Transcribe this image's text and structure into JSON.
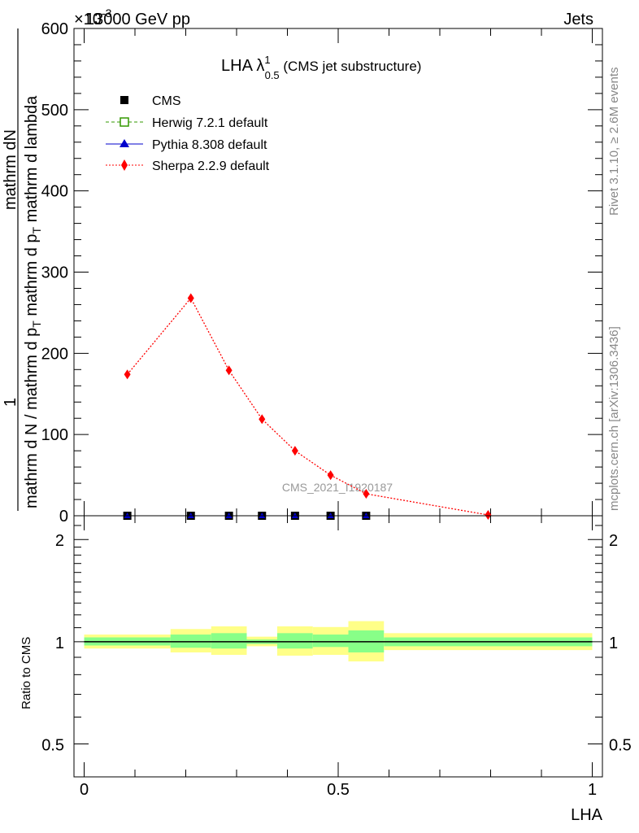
{
  "header": {
    "left": "13000 GeV pp",
    "right": "Jets",
    "exponent": "×10",
    "exponent_power": "-3"
  },
  "title": {
    "main": "LHA λ",
    "sup": "1",
    "sub": "0.5",
    "paren": " (CMS jet substructure)"
  },
  "side": {
    "rivet": "Rivet 3.1.10, ≥ 2.6M events",
    "mcplots": "mcplots.cern.ch [arXiv:1306.3436]"
  },
  "watermark": "CMS_2021_I1920187",
  "ylabel": {
    "numer_one": "1",
    "numer_deriv": "mathrm d",
    "numer_N": "N",
    "denom": "mathrm d N / mathrm d p",
    "denom_sub": "T",
    "denom2": " mathrm d p",
    "denom2_sub": "T",
    "denom3": " mathrm d lambda"
  },
  "ratio_ylabel": "Ratio to CMS",
  "xlabel": "LHA",
  "colors": {
    "herwig": "#339900",
    "pythia": "#0000cc",
    "sherpa": "#ff0000",
    "band_inner": "#88ff88",
    "band_outer": "#ffff88"
  },
  "chart_data": {
    "type": "line",
    "xlim": [
      -0.02,
      1.02
    ],
    "ylim": [
      0,
      600
    ],
    "y_exponent": -3,
    "x_ticks": [
      {
        "v": 0,
        "label": "0"
      },
      {
        "v": 0.5,
        "label": "0.5"
      },
      {
        "v": 1,
        "label": "1"
      }
    ],
    "y_ticks": [
      {
        "v": 0,
        "label": "0"
      },
      {
        "v": 100,
        "label": "100"
      },
      {
        "v": 200,
        "label": "200"
      },
      {
        "v": 300,
        "label": "300"
      },
      {
        "v": 400,
        "label": "400"
      },
      {
        "v": 500,
        "label": "500"
      },
      {
        "v": 600,
        "label": "600"
      }
    ],
    "legend": {
      "placement": "top-left",
      "entries": [
        {
          "name": "CMS",
          "style": "data"
        },
        {
          "name": "Herwig 7.2.1 default",
          "style": "herwig"
        },
        {
          "name": "Pythia 8.308 default",
          "style": "pythia"
        },
        {
          "name": "Sherpa 2.2.9 default",
          "style": "sherpa"
        }
      ]
    },
    "cms": {
      "x": [
        0.085,
        0.21,
        0.285,
        0.35,
        0.415,
        0.485,
        0.555
      ],
      "y": [
        0,
        0,
        0,
        0,
        0,
        0,
        0
      ]
    },
    "sherpa": {
      "x": [
        0.085,
        0.21,
        0.285,
        0.35,
        0.415,
        0.485,
        0.555,
        0.795
      ],
      "y": [
        174,
        268,
        179,
        119,
        80,
        50,
        27,
        1
      ]
    },
    "ratio": {
      "ylim": [
        0.4,
        2.35
      ],
      "y_scale": "log",
      "y_ticks": [
        {
          "v": 0.5,
          "label": "0.5"
        },
        {
          "v": 1,
          "label": "1"
        },
        {
          "v": 2,
          "label": "2"
        }
      ],
      "bands": [
        {
          "x0": 0,
          "x1": 0.17,
          "inner": [
            0.975,
            1.03
          ],
          "outer": [
            0.955,
            1.05
          ]
        },
        {
          "x0": 0.17,
          "x1": 0.25,
          "inner": [
            0.96,
            1.05
          ],
          "outer": [
            0.93,
            1.09
          ]
        },
        {
          "x0": 0.25,
          "x1": 0.32,
          "inner": [
            0.955,
            1.06
          ],
          "outer": [
            0.915,
            1.11
          ]
        },
        {
          "x0": 0.32,
          "x1": 0.38,
          "inner": [
            0.985,
            1.015
          ],
          "outer": [
            0.97,
            1.035
          ]
        },
        {
          "x0": 0.38,
          "x1": 0.45,
          "inner": [
            0.955,
            1.06
          ],
          "outer": [
            0.91,
            1.11
          ]
        },
        {
          "x0": 0.45,
          "x1": 0.52,
          "inner": [
            0.965,
            1.05
          ],
          "outer": [
            0.915,
            1.105
          ]
        },
        {
          "x0": 0.52,
          "x1": 0.59,
          "inner": [
            0.93,
            1.08
          ],
          "outer": [
            0.875,
            1.15
          ]
        },
        {
          "x0": 0.59,
          "x1": 1.0,
          "inner": [
            0.97,
            1.03
          ],
          "outer": [
            0.945,
            1.06
          ]
        }
      ]
    }
  }
}
